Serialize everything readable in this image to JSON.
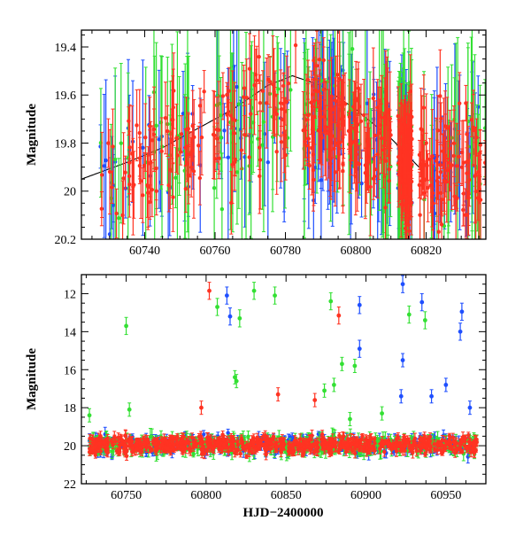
{
  "figure": "Light curve (two panels)",
  "colors": {
    "blue": "#1f4fff",
    "green": "#33e033",
    "red": "#ff3322",
    "curve": "#000000"
  },
  "chart_data": [
    {
      "type": "scatter",
      "panel": "top",
      "title": "",
      "xlabel": "",
      "ylabel": "Magnitude",
      "xlim": [
        60722,
        60837
      ],
      "ylim": [
        20.2,
        19.33
      ],
      "y_inverted": true,
      "xticks": [
        60740,
        60760,
        60780,
        60800,
        60820
      ],
      "xtick_labels": [
        "60740",
        "60760",
        "60780",
        "60800",
        "60820"
      ],
      "yticks": [
        19.4,
        19.6,
        19.8,
        20,
        20.2
      ],
      "ytick_labels": [
        "19.4",
        "19.6",
        "19.8",
        "20",
        "20.2"
      ],
      "baseline_mag": 19.9,
      "observation_windows": [
        [
          60727,
          60757
        ],
        [
          60759,
          60783
        ],
        [
          60785,
          60797
        ],
        [
          60798,
          60810
        ],
        [
          60812,
          60816
        ],
        [
          60818,
          60837
        ]
      ],
      "model_curve": {
        "name": "model fit",
        "x": [
          60722,
          60735,
          60745,
          60755,
          60765,
          60775,
          60782,
          60790,
          60800,
          60810,
          60818
        ],
        "y": [
          19.95,
          19.88,
          19.82,
          19.74,
          19.66,
          19.56,
          19.52,
          19.56,
          19.66,
          19.78,
          19.9
        ]
      },
      "series": [
        {
          "name": "blue",
          "color": "#1f4fff",
          "points": 150,
          "typical_error": 0.18
        },
        {
          "name": "green",
          "color": "#33e033",
          "points": 150,
          "typical_error": 0.22
        },
        {
          "name": "red",
          "color": "#ff3322",
          "points": 430,
          "typical_error": 0.1
        }
      ]
    },
    {
      "type": "scatter",
      "panel": "bottom",
      "title": "",
      "xlabel": "HJD−2400000",
      "ylabel": "Magnitude",
      "xlim": [
        60722,
        60975
      ],
      "ylim": [
        22,
        11
      ],
      "y_inverted": true,
      "xticks": [
        60750,
        60800,
        60850,
        60900,
        60950
      ],
      "xtick_labels": [
        "60750",
        "60800",
        "60850",
        "60900",
        "60950"
      ],
      "yticks": [
        12,
        14,
        16,
        18,
        20,
        22
      ],
      "ytick_labels": [
        "12",
        "14",
        "16",
        "18",
        "20",
        "22"
      ],
      "baseline_mag": 19.95,
      "data_range_x": [
        60727,
        60970
      ],
      "series": [
        {
          "name": "blue",
          "color": "#1f4fff",
          "points": 380,
          "typical_error": 0.25
        },
        {
          "name": "green",
          "color": "#33e033",
          "points": 380,
          "typical_error": 0.3
        },
        {
          "name": "red",
          "color": "#ff3322",
          "points": 700,
          "typical_error": 0.2
        }
      ],
      "outliers": [
        {
          "series": "green",
          "x": 60750,
          "y": 13.7
        },
        {
          "series": "red",
          "x": 60802,
          "y": 11.85
        },
        {
          "series": "blue",
          "x": 60813,
          "y": 12.1
        },
        {
          "series": "green",
          "x": 60807,
          "y": 12.7
        },
        {
          "series": "blue",
          "x": 60815,
          "y": 13.2
        },
        {
          "series": "green",
          "x": 60821,
          "y": 13.3
        },
        {
          "series": "green",
          "x": 60830,
          "y": 11.85
        },
        {
          "series": "green",
          "x": 60843,
          "y": 12.1
        },
        {
          "series": "green",
          "x": 60878,
          "y": 12.4
        },
        {
          "series": "red",
          "x": 60883,
          "y": 13.15
        },
        {
          "series": "blue",
          "x": 60896,
          "y": 12.6
        },
        {
          "series": "blue",
          "x": 60923,
          "y": 11.5
        },
        {
          "series": "green",
          "x": 60927,
          "y": 13.1
        },
        {
          "series": "blue",
          "x": 60935,
          "y": 12.45
        },
        {
          "series": "green",
          "x": 60937,
          "y": 13.4
        },
        {
          "series": "blue",
          "x": 60960,
          "y": 12.95
        },
        {
          "series": "blue",
          "x": 60959,
          "y": 14.0
        },
        {
          "series": "blue",
          "x": 60896,
          "y": 14.9
        },
        {
          "series": "blue",
          "x": 60923,
          "y": 15.5
        },
        {
          "series": "green",
          "x": 60885,
          "y": 15.7
        },
        {
          "series": "green",
          "x": 60893,
          "y": 15.8
        },
        {
          "series": "green",
          "x": 60818,
          "y": 16.4
        },
        {
          "series": "green",
          "x": 60819,
          "y": 16.6
        },
        {
          "series": "green",
          "x": 60880,
          "y": 16.8
        },
        {
          "series": "blue",
          "x": 60950,
          "y": 16.8
        },
        {
          "series": "green",
          "x": 60874,
          "y": 17.1
        },
        {
          "series": "red",
          "x": 60845,
          "y": 17.3
        },
        {
          "series": "red",
          "x": 60868,
          "y": 17.6
        },
        {
          "series": "blue",
          "x": 60922,
          "y": 17.4
        },
        {
          "series": "blue",
          "x": 60941,
          "y": 17.4
        },
        {
          "series": "green",
          "x": 60752,
          "y": 18.1
        },
        {
          "series": "red",
          "x": 60797,
          "y": 18.0
        },
        {
          "series": "blue",
          "x": 60965,
          "y": 18.0
        },
        {
          "series": "green",
          "x": 60727,
          "y": 18.4
        },
        {
          "series": "green",
          "x": 60890,
          "y": 18.6
        },
        {
          "series": "green",
          "x": 60910,
          "y": 18.3
        }
      ]
    }
  ]
}
